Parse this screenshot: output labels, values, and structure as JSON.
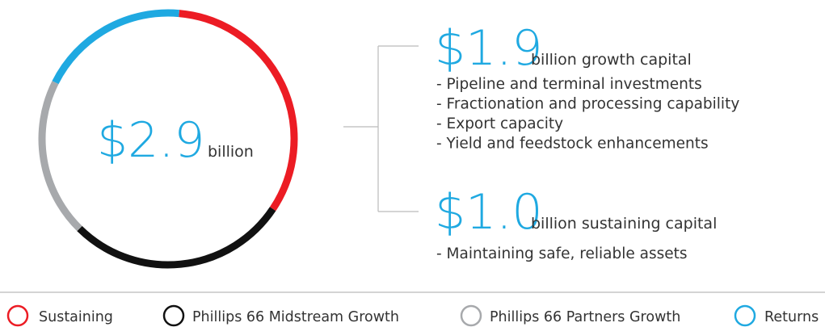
{
  "chart_data": {
    "type": "donut",
    "center_label": "$2.9",
    "center_sublabel": "billion",
    "categories": [
      "Sustaining",
      "Phillips 66 Midstream Growth",
      "Phillips 66 Partners Growth",
      "Returns"
    ],
    "values": [
      33,
      28,
      20,
      19
    ],
    "colors": [
      "#ec1c24",
      "#111111",
      "#a7a9ac",
      "#1fa9e1"
    ],
    "callouts": [
      {
        "amount": "$1.9",
        "label": "billion growth capital",
        "items": [
          "- Pipeline and terminal investments",
          "- Fractionation and processing capability",
          "- Export capacity",
          "- Yield and feedstock enhancements"
        ]
      },
      {
        "amount": "$1.0",
        "label": "billion sustaining capital",
        "items": [
          "- Maintaining safe, reliable assets"
        ]
      }
    ]
  }
}
